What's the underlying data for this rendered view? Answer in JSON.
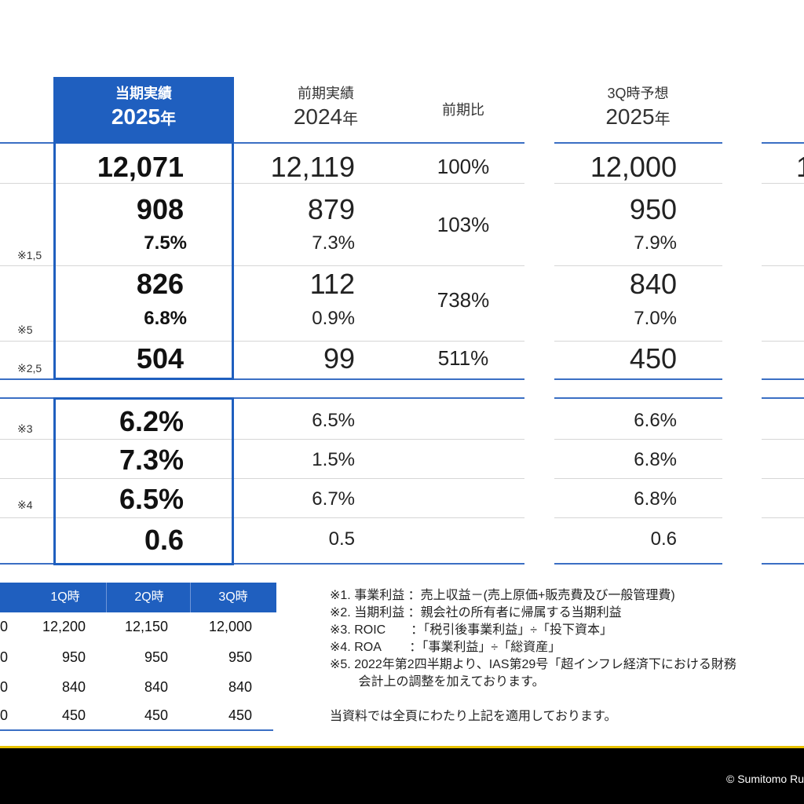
{
  "headers": {
    "current": {
      "label": "当期実績",
      "year": "2025",
      "unit": "年"
    },
    "previous": {
      "label": "前期実績",
      "year": "2024",
      "unit": "年"
    },
    "ratio": {
      "label": "前期比"
    },
    "forecast": {
      "label": "3Q時予想",
      "year": "2025",
      "unit": "年"
    }
  },
  "rows": {
    "r1": {
      "current": "12,071",
      "previous": "12,119",
      "ratio": "100%",
      "forecast": "12,000",
      "extra": "1"
    },
    "r2": {
      "note": "※1,5",
      "current": "908",
      "current_pct": "7.5%",
      "previous": "879",
      "previous_pct": "7.3%",
      "ratio": "103%",
      "forecast": "950",
      "forecast_pct": "7.9%"
    },
    "r3": {
      "note": "※5",
      "current": "826",
      "current_pct": "6.8%",
      "previous": "112",
      "previous_pct": "0.9%",
      "ratio": "738%",
      "forecast": "840",
      "forecast_pct": "7.0%"
    },
    "r4": {
      "note": "※2,5",
      "current": "504",
      "previous": "99",
      "ratio": "511%",
      "forecast": "450"
    }
  },
  "ratios": {
    "r5": {
      "note": "※3",
      "current": "6.2%",
      "previous": "6.5%",
      "forecast": "6.6%"
    },
    "r6": {
      "current": "7.3%",
      "previous": "1.5%",
      "forecast": "6.8%"
    },
    "r7": {
      "note": "※4",
      "current": "6.5%",
      "previous": "6.7%",
      "forecast": "6.8%"
    },
    "r8": {
      "current": "0.6",
      "previous": "0.5",
      "forecast": "0.6"
    }
  },
  "forecast_table": {
    "headers": [
      "1Q時",
      "2Q時",
      "3Q時"
    ],
    "rows": [
      {
        "lead": "0",
        "cells": [
          "12,200",
          "12,150",
          "12,000"
        ]
      },
      {
        "lead": "0",
        "cells": [
          "950",
          "950",
          "950"
        ]
      },
      {
        "lead": "0",
        "cells": [
          "840",
          "840",
          "840"
        ]
      },
      {
        "lead": "0",
        "cells": [
          "450",
          "450",
          "450"
        ]
      }
    ]
  },
  "notes": [
    "※1. 事業利益 ：売上収益－(売上原価+販売費及び一般管理費)",
    "※2. 当期利益 ：親会社の所有者に帰属する当期利益",
    "※3. ROIC　　：「税引後事業利益」÷「投下資本」",
    "※4. ROA　　 ：「事業利益」÷「総資産」",
    "※5. 2022年第2四半期より、IAS第29号「超インフレ経済下における財務",
    "　　 会計上の調整を加えております。",
    "",
    "当資料では全頁にわたり上記を適用しております。"
  ],
  "footer": {
    "copyright": "© Sumitomo Ru"
  },
  "colors": {
    "accent": "#1f5fbf",
    "footer_bg": "#000000",
    "footer_line": "#e8c200"
  }
}
